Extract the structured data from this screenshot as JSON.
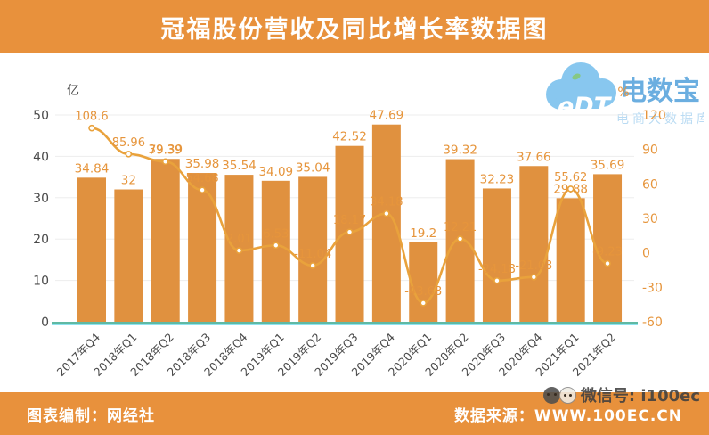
{
  "title": "冠福股份营收及同比增长率数据图",
  "logo": {
    "mark": "eDT",
    "name": "电数宝",
    "subtitle": "电商大数据库"
  },
  "footer": {
    "left": "图表编制：网经社",
    "right": "数据来源：WWW.100EC.CN",
    "watermark": "微信号: i100ec"
  },
  "chart_data": {
    "type": "bar+line combo",
    "categories": [
      "2017年Q4",
      "2018年Q1",
      "2018年Q2",
      "2018年Q3",
      "2018年Q4",
      "2019年Q1",
      "2019年Q2",
      "2019年Q3",
      "2019年Q4",
      "2020年Q1",
      "2020年Q2",
      "2020年Q3",
      "2020年Q4",
      "2021年Q1",
      "2021年Q2"
    ],
    "series": [
      {
        "name": "营收",
        "type": "bar",
        "axis": "left",
        "unit": "亿",
        "values": [
          34.84,
          32,
          39.39,
          35.98,
          35.54,
          34.09,
          35.04,
          42.52,
          47.69,
          19.2,
          39.32,
          32.23,
          37.66,
          29.88,
          35.69
        ],
        "labels": [
          "34.84",
          "32",
          "39.39",
          "35.98",
          "35.54",
          "34.09",
          "35.04",
          "42.52",
          "47.69",
          "19.2",
          "39.32",
          "32.23",
          "37.66",
          "29.88",
          "35.69"
        ]
      },
      {
        "name": "同比增长率",
        "type": "line",
        "axis": "right",
        "unit": "%",
        "values": [
          108.6,
          85.96,
          79.39,
          54.68,
          2.01,
          6.53,
          -11.04,
          18.17,
          34.18,
          -43.68,
          12.21,
          -24.18,
          -21.03,
          55.62,
          -9.23
        ],
        "labels": [
          "108.6",
          "85.96",
          "79.39",
          "54.68",
          "2.01",
          "6.53",
          "-11.04",
          "18.17",
          "34.18",
          "-43.68",
          "12.21",
          "-24.18",
          "-21.03",
          "55.62",
          "-9.23"
        ]
      }
    ],
    "left_axis": {
      "unit": "亿",
      "ticks": [
        0,
        10,
        20,
        30,
        40,
        50
      ],
      "range": [
        0,
        50
      ]
    },
    "right_axis": {
      "unit": "%",
      "ticks": [
        120,
        90,
        60,
        30,
        0,
        -30,
        -60
      ],
      "range": [
        -60,
        120
      ]
    },
    "grid": true,
    "legend": "none",
    "colors": {
      "band": "#E8913C",
      "bar": "#E0913F",
      "line": "#E9A23C",
      "point_fill": "#FFFFFF",
      "label_orange": "#E6953C",
      "axis_text": "#4a4a4a",
      "baseline_teal": "#5FB9A3",
      "baseline_cyan": "#8FE3F0",
      "grid_line": "#EDEDED",
      "logo_blue": "#5FA8DE",
      "logo_light_blue": "#B5D9F2"
    }
  }
}
